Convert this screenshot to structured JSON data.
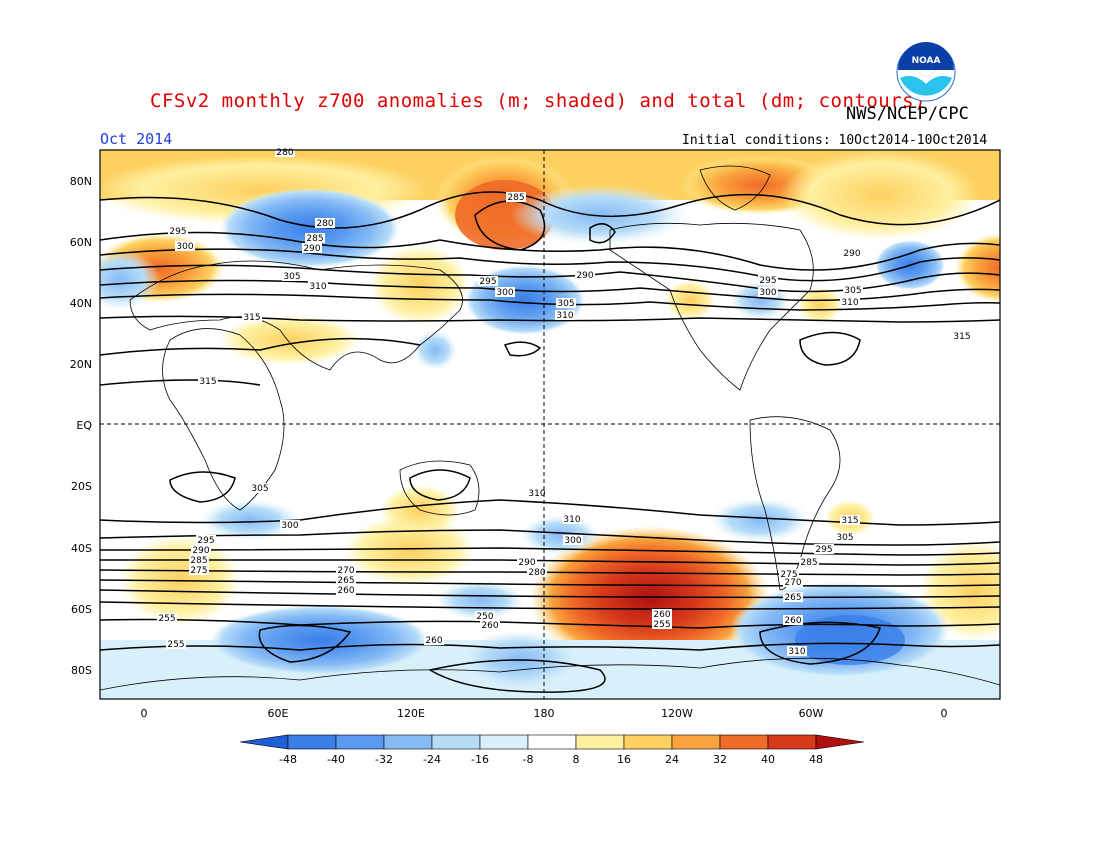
{
  "title": "CFSv2 monthly z700 anomalies (m; shaded) and total (dm; contours)",
  "agency": "NWS/NCEP/CPC",
  "logo_text": "NOAA",
  "period": "Oct 2014",
  "initial_conditions": "Initial conditions: 10Oct2014-10Oct2014",
  "lat_labels": [
    "80N",
    "60N",
    "40N",
    "20N",
    "EQ",
    "20S",
    "40S",
    "60S",
    "80S"
  ],
  "lon_labels": [
    "0",
    "60E",
    "120E",
    "180",
    "120W",
    "60W",
    "0"
  ],
  "colorbar_labels": [
    "-48",
    "-40",
    "-32",
    "-24",
    "-16",
    "-8",
    "8",
    "16",
    "24",
    "32",
    "40",
    "48"
  ],
  "colorbar_colors": [
    "#1e5fd8",
    "#3a7fe8",
    "#5a9af0",
    "#86baf5",
    "#b6dcf8",
    "#d8f0fa",
    "#ffffff",
    "#fff0a0",
    "#fdd060",
    "#faa23c",
    "#f06a28",
    "#d63a1a",
    "#b01010"
  ],
  "contour_labels": [
    "280",
    "280",
    "285",
    "290",
    "295",
    "300",
    "305",
    "310",
    "315",
    "315",
    "285",
    "290",
    "295",
    "300",
    "305",
    "310",
    "290",
    "295",
    "300",
    "305",
    "310",
    "315",
    "310",
    "315",
    "310",
    "305",
    "300",
    "295",
    "290",
    "285",
    "280",
    "275",
    "270",
    "265",
    "260",
    "255",
    "250",
    "260",
    "255",
    "260",
    "310",
    "305",
    "300",
    "295",
    "290",
    "285",
    "275",
    "270",
    "265",
    "260",
    "255",
    "260"
  ]
}
